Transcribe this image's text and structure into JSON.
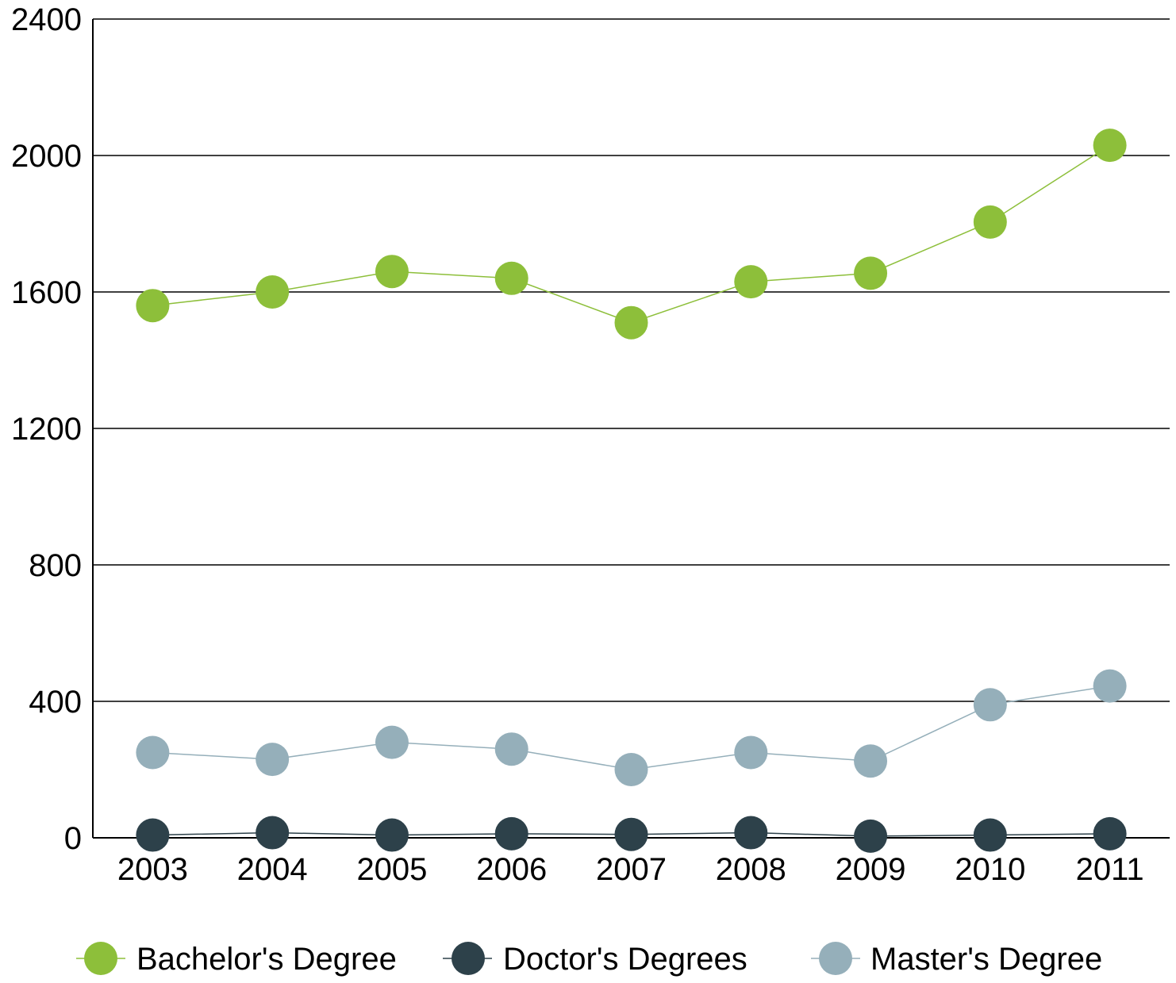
{
  "chart_data": {
    "type": "line",
    "title": "",
    "xlabel": "",
    "ylabel": "",
    "categories": [
      "2003",
      "2004",
      "2005",
      "2006",
      "2007",
      "2008",
      "2009",
      "2010",
      "2011"
    ],
    "ylim": [
      0,
      2400
    ],
    "yticks": [
      "0",
      "400",
      "800",
      "1200",
      "1600",
      "2000",
      "2400"
    ],
    "grid": "horizontal",
    "legend_position": "bottom",
    "series": [
      {
        "name": "Bachelor's Degree",
        "color": "#8dbf3a",
        "values": [
          1560,
          1600,
          1660,
          1640,
          1510,
          1630,
          1655,
          1805,
          2030
        ]
      },
      {
        "name": "Doctor's Degrees",
        "color": "#2d414a",
        "values": [
          8,
          15,
          8,
          12,
          10,
          15,
          5,
          8,
          12
        ]
      },
      {
        "name": "Master's Degree",
        "color": "#95afba",
        "values": [
          250,
          230,
          280,
          260,
          200,
          250,
          225,
          390,
          445
        ]
      }
    ]
  }
}
